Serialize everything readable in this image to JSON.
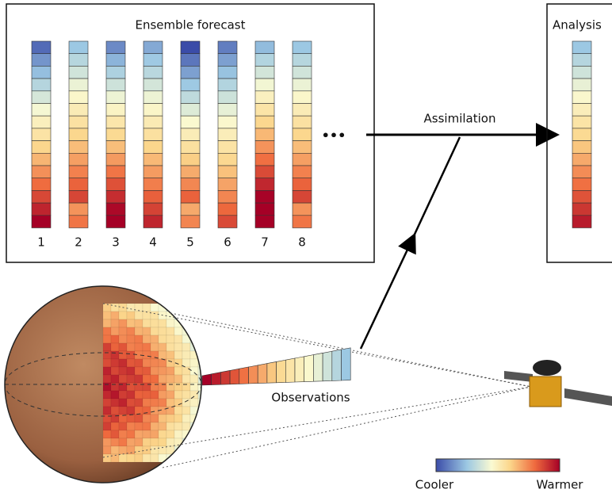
{
  "ensemble": {
    "title": "Ensemble forecast",
    "members": [
      "1",
      "2",
      "3",
      "4",
      "5",
      "6",
      "7",
      "8"
    ],
    "ellipsis": "•••"
  },
  "assimilation": "Assimilation",
  "analysis": {
    "title": "Analysis"
  },
  "observations": "Observations",
  "colorbar": {
    "low": "Cooler",
    "high": "Warmer"
  }
}
